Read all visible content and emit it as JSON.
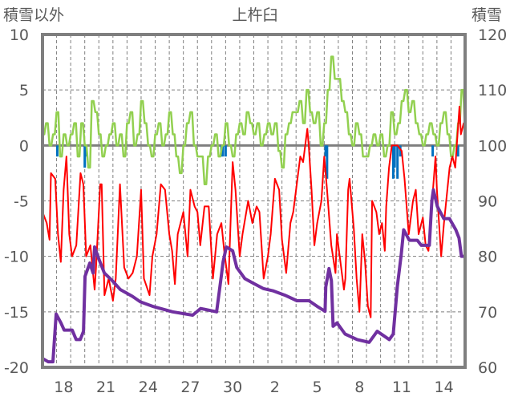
{
  "chart_data": {
    "type": "line",
    "title": "上杵臼",
    "ylabel_left": "積雪以外",
    "ylabel_right": "積雪",
    "ylim_left": [
      -20,
      10
    ],
    "ylim_right": [
      60,
      120
    ],
    "yticks_left": [
      "10",
      "5",
      "0",
      "-5",
      "-10",
      "-15",
      "-20"
    ],
    "yticks_right": [
      "120",
      "110",
      "100",
      "90",
      "80",
      "70",
      "60"
    ],
    "xlim_days": [
      0,
      30
    ],
    "xtick_labels": [
      "18",
      "21",
      "24",
      "27",
      "30",
      "2",
      "5",
      "8",
      "11",
      "14"
    ],
    "xtick_days": [
      1.5,
      4.5,
      7.5,
      10.5,
      13.5,
      16.5,
      19.5,
      22.5,
      25.5,
      28.5
    ],
    "grid": true,
    "colors": {
      "red": "#ff0000",
      "green": "#92d050",
      "blue": "#0070c0",
      "purple": "#7030a0",
      "axis": "#7f7f7f"
    },
    "series": [
      {
        "name": "red",
        "axis": "left",
        "color": "#ff0000",
        "x": [
          0,
          0.3,
          0.5,
          0.6,
          0.9,
          1.1,
          1.3,
          1.5,
          1.7,
          1.9,
          2.1,
          2.4,
          2.7,
          2.9,
          3.1,
          3.4,
          3.7,
          3.8,
          4.1,
          4.2,
          4.4,
          4.7,
          5.0,
          5.2,
          5.5,
          5.8,
          6.1,
          6.4,
          6.7,
          7.0,
          7.2,
          7.6,
          7.8,
          8.1,
          8.4,
          8.7,
          9.0,
          9.2,
          9.4,
          9.6,
          10.0,
          10.3,
          10.5,
          10.8,
          11.0,
          11.2,
          11.5,
          11.8,
          12.1,
          12.4,
          12.7,
          12.9,
          13.2,
          13.5,
          13.7,
          14.0,
          14.2,
          14.4,
          14.6,
          14.9,
          15.2,
          15.4,
          15.7,
          16.0,
          16.2,
          16.5,
          16.8,
          17.0,
          17.3,
          17.6,
          17.8,
          18.1,
          18.3,
          18.5,
          18.8,
          18.9,
          19.1,
          19.3,
          19.5,
          19.8,
          20.0,
          20.2,
          20.5,
          20.8,
          20.9,
          21.1,
          21.4,
          21.5,
          21.7,
          21.8,
          22.1,
          22.3,
          22.5,
          22.7,
          22.9,
          23.1,
          23.3,
          23.4,
          23.7,
          23.9,
          24.1,
          24.3,
          24.4,
          24.6,
          24.8,
          25.0,
          25.2,
          25.5,
          25.7,
          26.0,
          26.3,
          26.5,
          26.7,
          27.0,
          27.2,
          27.4,
          27.6,
          27.9,
          28.0,
          28.3,
          28.5,
          28.7,
          28.9,
          29.1,
          29.3,
          29.6,
          29.7,
          29.9,
          30.0
        ],
        "y": [
          -6,
          -7,
          -8.5,
          -2.5,
          -3,
          -8,
          -10.5,
          -4,
          -1,
          -8,
          -10,
          -9,
          -2.5,
          -3.5,
          -10,
          -9,
          -13,
          -11,
          -3.5,
          -3.5,
          -13.5,
          -12,
          -14,
          -12,
          -3.5,
          -11,
          -12,
          -11.5,
          -10,
          -4,
          -12,
          -13.5,
          -10,
          -8,
          -3.5,
          -4,
          -8,
          -9.5,
          -12.5,
          -8,
          -6,
          -10,
          -4,
          -5.5,
          -6,
          -9,
          -5.5,
          -5.5,
          -12,
          -8,
          -7,
          -9.5,
          -12.5,
          -1.5,
          -4,
          -10,
          -8,
          -6.5,
          -5,
          -7,
          -5.5,
          -6,
          -12,
          -10,
          -8,
          -3,
          -4,
          -8.5,
          -11.5,
          -7,
          -6,
          -3,
          -1,
          -1.5,
          1.5,
          0,
          -4,
          -9,
          -7,
          -5,
          -1,
          -4,
          -9,
          -11.5,
          -8,
          -10,
          -13,
          -12,
          -4,
          -3,
          -7.5,
          -12,
          -15,
          -8,
          -10.5,
          -14.5,
          -15.5,
          -5,
          -6,
          -8,
          -7,
          -9.5,
          -5.5,
          -2,
          0,
          0,
          0,
          -0.5,
          -3,
          -8,
          -5,
          -4,
          -8,
          -6.5,
          -9,
          -9.5,
          -6,
          -1,
          -4,
          -10,
          -7,
          -4.5,
          -2,
          -1,
          -2,
          3.5,
          1,
          2,
          1
        ]
      },
      {
        "name": "green",
        "axis": "left",
        "color": "#92d050",
        "x_step_days": 0.25,
        "y": [
          1,
          2,
          0,
          1,
          3,
          -1,
          1,
          0,
          1,
          2,
          -1,
          2,
          0,
          -2,
          4,
          3,
          1,
          -1,
          0,
          1,
          2,
          0,
          1,
          -1,
          2,
          3,
          0,
          1,
          4,
          2,
          0,
          -1,
          1,
          2,
          0,
          1,
          3,
          1,
          -1,
          -2.5,
          0,
          2,
          3,
          0,
          -1,
          -1,
          -3.5,
          -1,
          0,
          1,
          -1,
          0,
          2,
          0,
          -1,
          1,
          2,
          1,
          3,
          2,
          1,
          2,
          0,
          1,
          2,
          1,
          2,
          -0.5,
          -2,
          1,
          2,
          3,
          3,
          4,
          2,
          5,
          3,
          2,
          3,
          0,
          2,
          5,
          8,
          6,
          6,
          4,
          3,
          1,
          0,
          2,
          1,
          -1,
          -1,
          0,
          1,
          0,
          1,
          -1,
          0,
          3,
          1,
          2,
          4,
          5,
          3,
          4,
          2,
          1,
          0,
          1,
          2,
          1,
          0,
          2,
          3,
          1,
          -1,
          0,
          2,
          5,
          1
        ]
      },
      {
        "name": "blue",
        "axis": "left",
        "color": "#0070c0",
        "type": "bar",
        "x": [
          1.05,
          3.0,
          3.1,
          12.7,
          12.8,
          13.0,
          20.1,
          20.2,
          24.9,
          25.0,
          25.2,
          25.4,
          27.7,
          29.5
        ],
        "y": [
          -1,
          -2,
          -1,
          -1,
          -1,
          -1,
          -1,
          -3,
          -3,
          -2,
          -3,
          -1,
          -1,
          -1
        ]
      },
      {
        "name": "purple",
        "axis": "right",
        "color": "#7030a0",
        "x": [
          0,
          0.4,
          0.74,
          0.97,
          1.31,
          1.54,
          2.11,
          2.39,
          2.68,
          2.91,
          3.02,
          3.36,
          3.59,
          3.7,
          3.93,
          4.39,
          4.96,
          5.53,
          6.38,
          6.95,
          7.81,
          9.23,
          10.66,
          11.23,
          12.36,
          12.65,
          12.82,
          13.05,
          13.5,
          13.79,
          14.36,
          14.93,
          15.67,
          16.35,
          17.21,
          18.06,
          18.92,
          19.49,
          20.06,
          20.11,
          20.34,
          20.51,
          20.63,
          20.91,
          21.48,
          22.34,
          23.19,
          23.76,
          24.62,
          24.9,
          25.19,
          25.47,
          25.64,
          26.04,
          26.61,
          26.89,
          27.46,
          27.64,
          27.75,
          28.03,
          28.49,
          28.89,
          29.34,
          29.57,
          29.74,
          30
        ],
        "y": [
          61.6,
          61,
          61,
          69.6,
          68,
          66.7,
          66.7,
          65,
          65,
          66.5,
          76.4,
          78.8,
          77,
          81.7,
          80,
          77,
          75.6,
          74,
          72.8,
          71.8,
          71,
          70,
          69.4,
          70.6,
          70,
          75.6,
          79,
          81.7,
          81,
          78,
          76,
          75.2,
          74.2,
          73.8,
          73,
          72,
          72,
          71,
          70.1,
          74.5,
          77.8,
          75.6,
          67.4,
          68,
          66,
          65,
          64.5,
          66.5,
          65,
          66,
          74.6,
          80.4,
          84.8,
          82.9,
          82.9,
          82,
          82,
          90,
          92,
          89,
          86.8,
          86.8,
          84.8,
          83.3,
          80,
          80
        ]
      }
    ]
  }
}
